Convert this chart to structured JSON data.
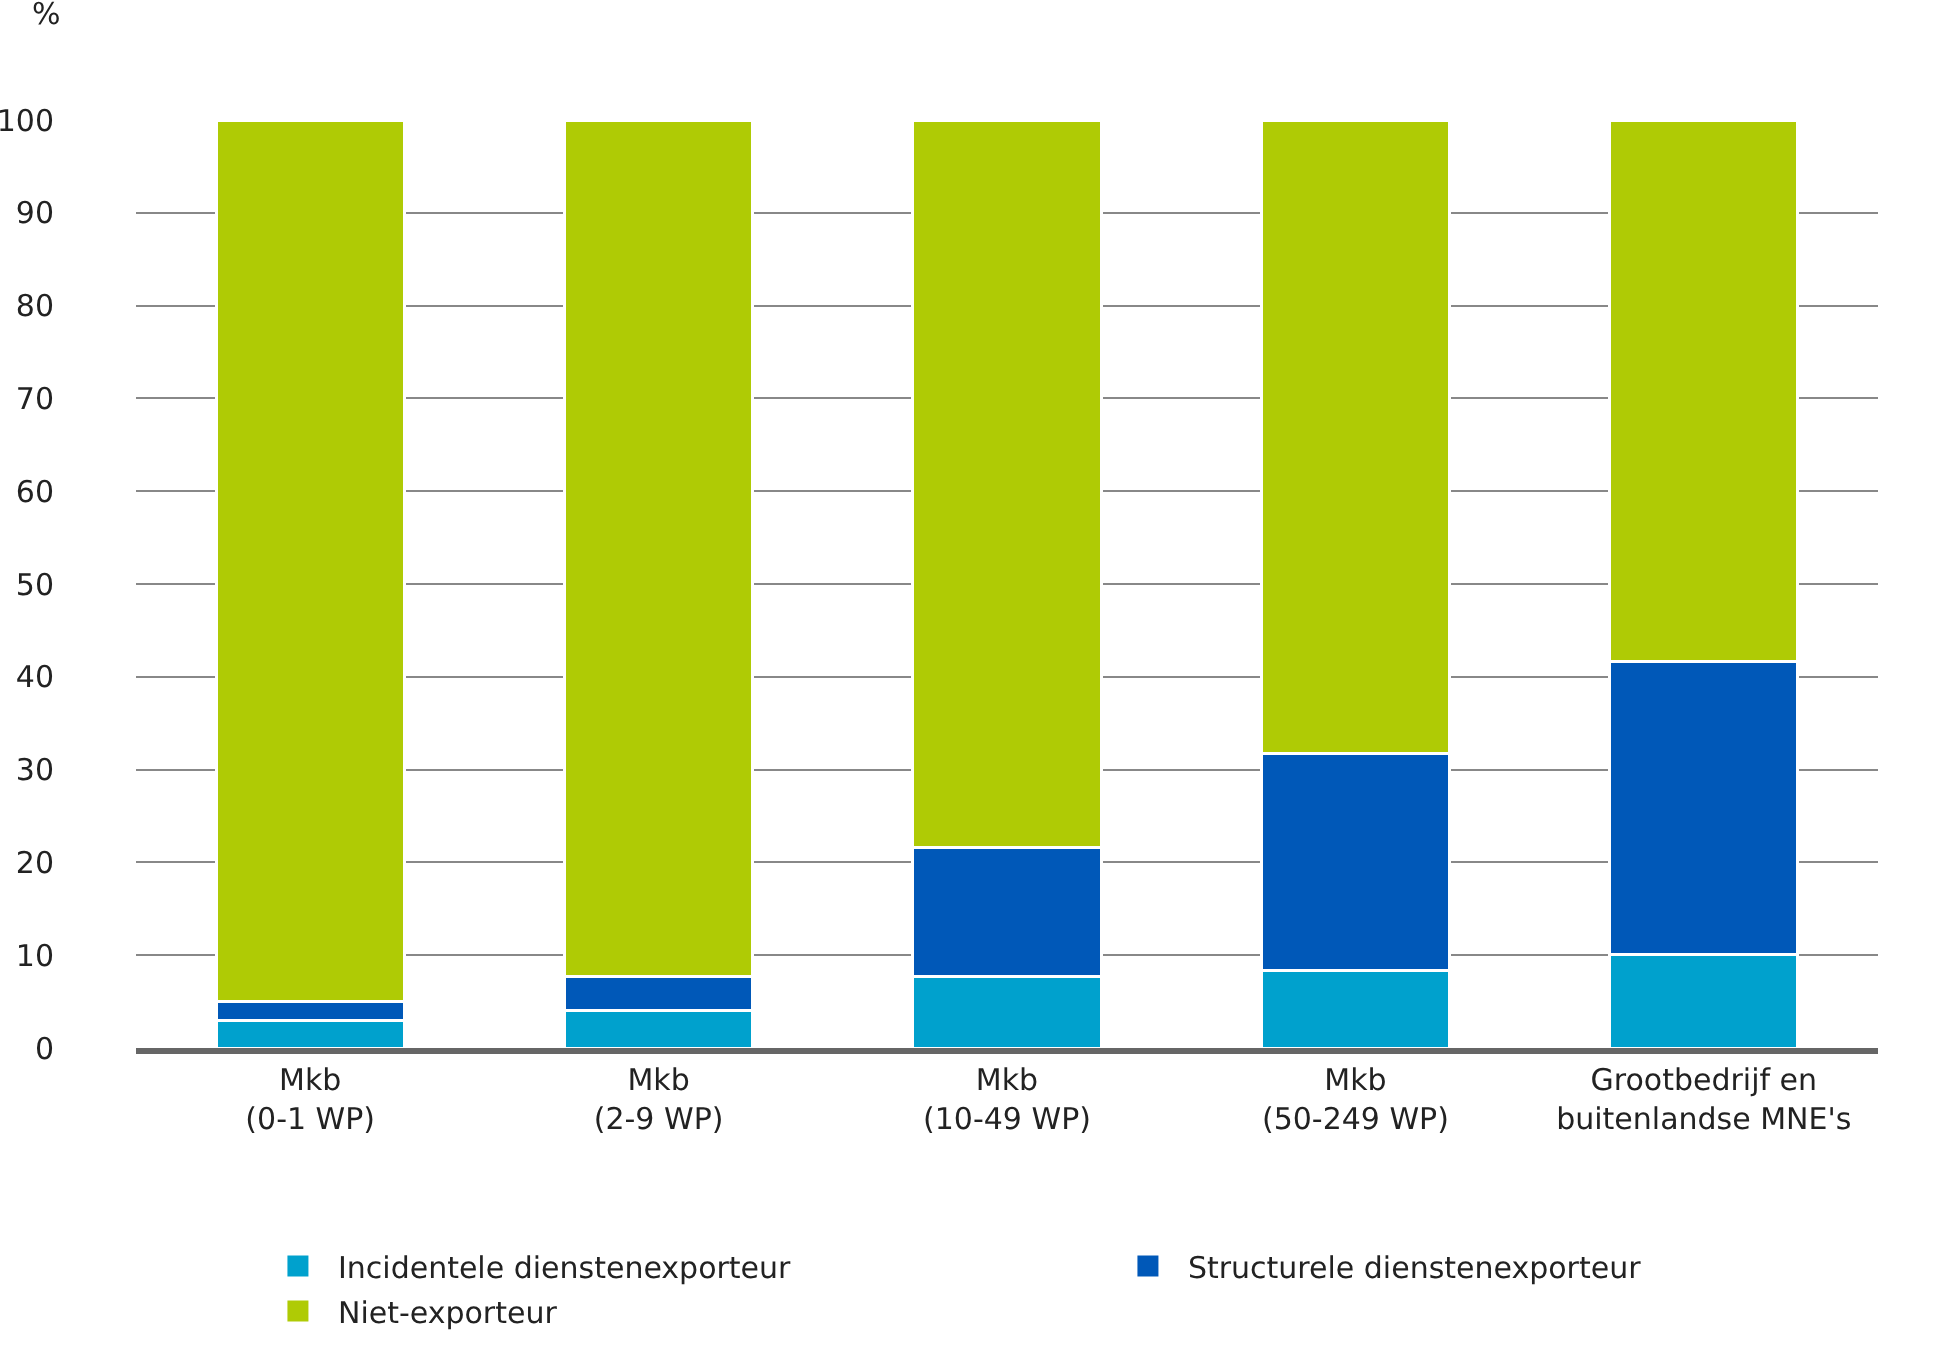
{
  "chart_data": {
    "type": "bar",
    "stacked": true,
    "ylabel": "%",
    "categories": [
      "Mkb\n(0-1 WP)",
      "Mkb\n(2-9 WP)",
      "Mkb\n(10-49 WP)",
      "Mkb\n(50-249 WP)",
      "Grootbedrijf en\nbuitenlandse MNE's"
    ],
    "series": [
      {
        "name": "Incidentele dienstenexporteur",
        "color": "#00a1cd",
        "values": [
          3,
          4,
          7.7,
          8.3,
          10.1
        ]
      },
      {
        "name": "Structurele dienstenexporteur",
        "color": "#0058b8",
        "values": [
          2,
          3.7,
          13.9,
          23.4,
          31.5
        ]
      },
      {
        "name": "Niet-exporteur",
        "color": "#afcb05",
        "values": [
          95,
          92.3,
          78.4,
          68.3,
          58.4
        ]
      }
    ],
    "ylim": [
      0,
      100
    ],
    "yticks": [
      0,
      10,
      20,
      30,
      40,
      50,
      60,
      70,
      80,
      90,
      100
    ],
    "grid": "y",
    "legend": "bottom"
  }
}
